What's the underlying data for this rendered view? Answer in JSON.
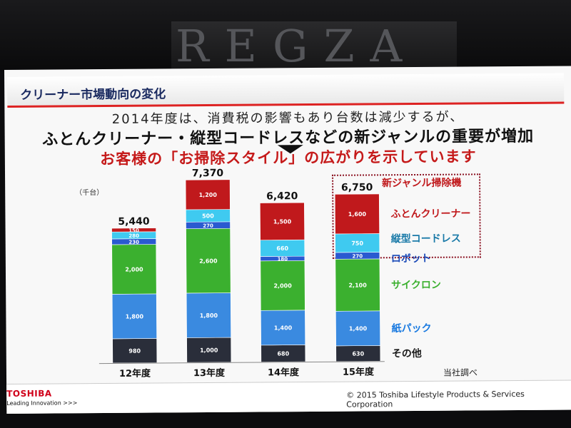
{
  "wall": {
    "brand": "REGZA"
  },
  "slide": {
    "title": "クリーナー市場動向の変化",
    "headline1": "2014年度は、消費税の影響もあり台数は減少するが、",
    "headline2": "ふとんクリーナー・縦型コードレスなどの新ジャンルの重要が増加",
    "headline3": "お客様の「お掃除スタイル」の広がりを示しています",
    "unit": "（千台）",
    "source": "当社調べ",
    "highlight_label": "新ジャンル掃除機"
  },
  "footer": {
    "logo": "TOSHIBA",
    "tagline": "Leading Innovation >>>",
    "copyright": "© 2015 Toshiba Lifestyle Products & Services Corporation"
  },
  "colors": {
    "other": "#2a2e3a",
    "paper_pack": "#3a8ae0",
    "cyclone": "#3bb02f",
    "robot": "#2a5ad0",
    "cordless": "#3fcaf0",
    "futon": "#c0191c",
    "legend_futon": "#c0191c",
    "legend_cordless": "#1a7aa8",
    "legend_robot": "#1a4ab8",
    "legend_cyclone": "#3bb02f",
    "legend_paper": "#1a7ae0",
    "legend_other": "#1a1a1a"
  },
  "chart_data": {
    "type": "stacked-bar",
    "categories": [
      "12年度",
      "13年度",
      "14年度",
      "15年度"
    ],
    "totals": [
      "5,440",
      "7,370",
      "6,420",
      "6,750"
    ],
    "series": [
      {
        "name": "その他",
        "values": [
          980,
          1000,
          680,
          630
        ],
        "labels": [
          "980",
          "1,000",
          "680",
          "630"
        ]
      },
      {
        "name": "紙パック",
        "values": [
          1800,
          1800,
          1400,
          1400
        ],
        "labels": [
          "1,800",
          "1,800",
          "1,400",
          "1,400"
        ]
      },
      {
        "name": "サイクロン",
        "values": [
          2000,
          2600,
          2000,
          2100
        ],
        "labels": [
          "2,000",
          "2,600",
          "2,000",
          "2,100"
        ]
      },
      {
        "name": "ロボット",
        "values": [
          230,
          270,
          180,
          270
        ],
        "labels": [
          "230",
          "270",
          "180",
          "270"
        ]
      },
      {
        "name": "縦型コードレス",
        "values": [
          280,
          500,
          660,
          750
        ],
        "labels": [
          "280",
          "500",
          "660",
          "750"
        ]
      },
      {
        "name": "ふとんクリーナー",
        "values": [
          150,
          1200,
          1500,
          1600
        ],
        "labels": [
          "150",
          "1,200",
          "1,500",
          "1,600"
        ]
      }
    ],
    "ylim": [
      0,
      7400
    ]
  }
}
